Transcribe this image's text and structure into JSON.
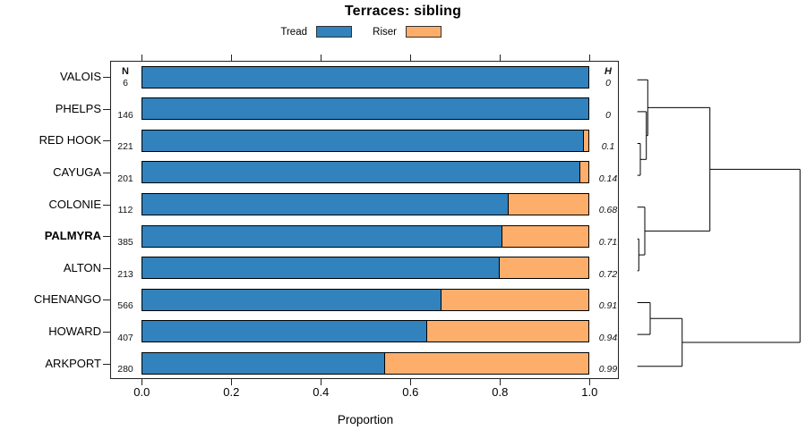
{
  "title": "Terraces: sibling",
  "legend": {
    "items": [
      {
        "label": "Tread",
        "color": "#3182BD"
      },
      {
        "label": "Riser",
        "color": "#FDAE6B"
      }
    ]
  },
  "columns": {
    "n_header": "N",
    "h_header": "H"
  },
  "axis": {
    "xlabel": "Proportion"
  },
  "chart_data": {
    "type": "bar",
    "orientation": "horizontal-stacked",
    "title": "Terraces: sibling",
    "xlabel": "Proportion",
    "xlim": [
      0,
      1
    ],
    "x_ticks": [
      0.0,
      0.2,
      0.4,
      0.6,
      0.8,
      1.0
    ],
    "grid": false,
    "legend_position": "top",
    "categories": [
      "VALOIS",
      "PHELPS",
      "RED HOOK",
      "CAYUGA",
      "COLONIE",
      "PALMYRA",
      "ALTON",
      "CHENANGO",
      "HOWARD",
      "ARKPORT"
    ],
    "highlighted_category": "PALMYRA",
    "series": [
      {
        "name": "Tread",
        "color": "#3182BD",
        "values": [
          1.0,
          1.0,
          0.987,
          0.98,
          0.82,
          0.806,
          0.8,
          0.67,
          0.638,
          0.543
        ]
      },
      {
        "name": "Riser",
        "color": "#FDAE6B",
        "values": [
          0.0,
          0.0,
          0.013,
          0.02,
          0.18,
          0.194,
          0.2,
          0.33,
          0.362,
          0.457
        ]
      }
    ],
    "n_values": [
      6,
      146,
      221,
      201,
      112,
      385,
      213,
      566,
      407,
      280
    ],
    "h_values": [
      "0",
      "0",
      "0.1",
      "0.14",
      "0.68",
      "0.71",
      "0.72",
      "0.91",
      "0.94",
      "0.99"
    ]
  },
  "dendrogram": {
    "leaf_x": 711.7,
    "segments": [
      [
        711.7,
        89.3,
        723.3,
        89.3
      ],
      [
        711.7,
        124.9,
        721.7,
        124.9
      ],
      [
        711.7,
        160.5,
        715.0,
        160.5
      ],
      [
        711.7,
        196.1,
        715.0,
        196.1
      ],
      [
        711.7,
        231.7,
        720.0,
        231.7
      ],
      [
        711.7,
        267.3,
        713.3,
        267.3
      ],
      [
        711.7,
        302.9,
        713.3,
        302.9
      ],
      [
        711.7,
        338.5,
        726.0,
        338.5
      ],
      [
        711.7,
        374.1,
        726.0,
        374.1
      ],
      [
        711.7,
        409.7,
        761.7,
        409.7
      ],
      [
        715.0,
        160.5,
        715.0,
        196.1
      ],
      [
        721.7,
        124.9,
        721.7,
        178.3
      ],
      [
        723.3,
        89.3,
        723.3,
        151.6
      ],
      [
        713.3,
        267.3,
        713.3,
        302.9
      ],
      [
        720.0,
        231.7,
        720.0,
        285.1
      ],
      [
        792.7,
        120.4,
        792.7,
        258.4
      ],
      [
        726.0,
        338.5,
        726.0,
        374.1
      ],
      [
        761.7,
        356.3,
        761.7,
        409.7
      ],
      [
        893.3,
        189.4,
        893.3,
        383.0
      ],
      [
        715.0,
        178.3,
        721.7,
        178.3
      ],
      [
        721.7,
        151.6,
        723.3,
        151.6
      ],
      [
        723.3,
        120.4,
        792.7,
        120.4
      ],
      [
        713.3,
        285.1,
        720.0,
        285.1
      ],
      [
        720.0,
        258.4,
        792.7,
        258.4
      ],
      [
        792.7,
        189.4,
        893.3,
        189.4
      ],
      [
        726.0,
        356.3,
        761.7,
        356.3
      ],
      [
        761.7,
        383.0,
        893.3,
        383.0
      ]
    ]
  }
}
